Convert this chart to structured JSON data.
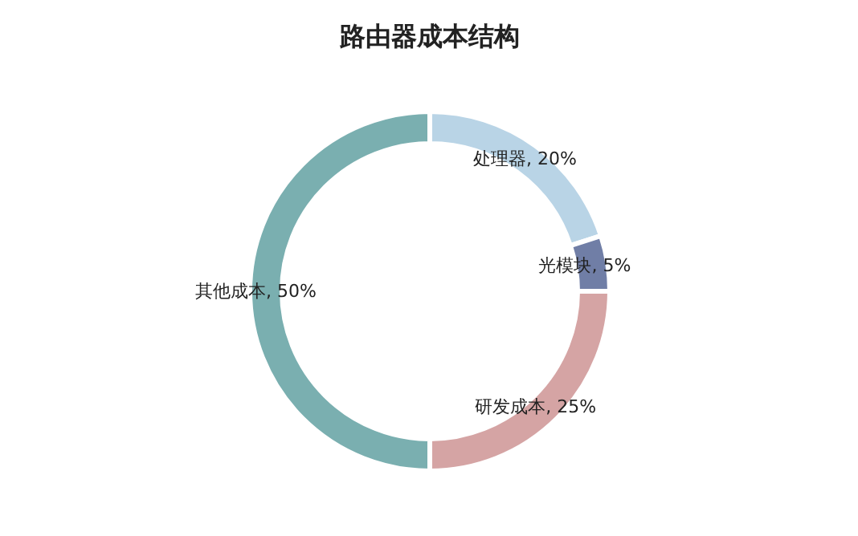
{
  "chart_data": {
    "type": "donut",
    "title": "路由器成本结构",
    "categories": [
      "处理器",
      "光模块",
      "研发成本",
      "其他成本"
    ],
    "values": [
      20,
      5,
      25,
      50
    ],
    "colors": [
      "#b9d4e6",
      "#707ea6",
      "#d5a4a4",
      "#7aafb0"
    ],
    "value_labels": [
      ", 20%",
      ", 5%",
      ", 25%",
      ", 50%"
    ]
  }
}
